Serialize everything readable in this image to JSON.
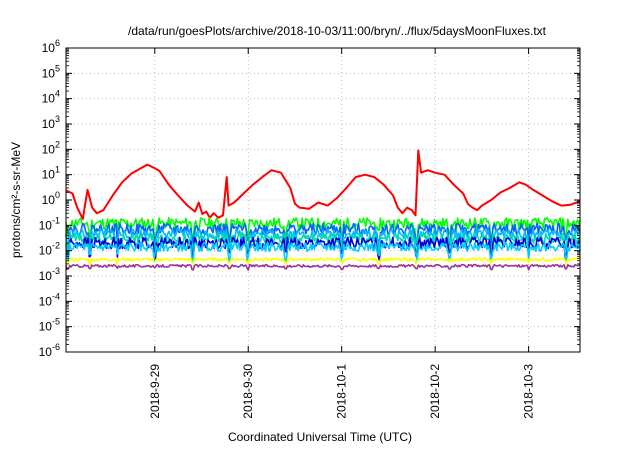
{
  "chart_data": {
    "type": "line",
    "title": "/data/run/goesPlots/archive/2018-10-03/11:00/bryn/../flux/5daysMoonFluxes.txt",
    "xlabel": "Coordinated Universal Time (UTC)",
    "ylabel": "protons/cm²-s-sr-MeV",
    "yscale": "log",
    "ylim": [
      1e-06,
      1000000.0
    ],
    "xlim": [
      0,
      5.5
    ],
    "x_ticks": [
      {
        "x": 0.95,
        "label": "2018-9-29"
      },
      {
        "x": 1.95,
        "label": "2018-9-30"
      },
      {
        "x": 2.95,
        "label": "2018-10-1"
      },
      {
        "x": 3.95,
        "label": "2018-10-2"
      },
      {
        "x": 4.95,
        "label": "2018-10-3"
      }
    ],
    "y_ticks": [
      {
        "exp": -6,
        "label": "10",
        "sup": "-6"
      },
      {
        "exp": -5,
        "label": "10",
        "sup": "-5"
      },
      {
        "exp": -4,
        "label": "10",
        "sup": "-4"
      },
      {
        "exp": -3,
        "label": "10",
        "sup": "-3"
      },
      {
        "exp": -2,
        "label": "10",
        "sup": "-2"
      },
      {
        "exp": -1,
        "label": "10",
        "sup": "-1"
      },
      {
        "exp": 0,
        "label": "10",
        "sup": "0"
      },
      {
        "exp": 1,
        "label": "10",
        "sup": "1"
      },
      {
        "exp": 2,
        "label": "10",
        "sup": "2"
      },
      {
        "exp": 3,
        "label": "10",
        "sup": "3"
      },
      {
        "exp": 4,
        "label": "10",
        "sup": "4"
      },
      {
        "exp": 5,
        "label": "10",
        "sup": "5"
      },
      {
        "exp": 6,
        "label": "10",
        "sup": "6"
      }
    ],
    "grid": true,
    "legend": "none",
    "series": [
      {
        "color": "#ff0000",
        "points": [
          [
            0,
            2.4
          ],
          [
            0.07,
            1.8
          ],
          [
            0.12,
            0.5
          ],
          [
            0.18,
            0.18
          ],
          [
            0.23,
            2.5
          ],
          [
            0.28,
            0.5
          ],
          [
            0.33,
            0.3
          ],
          [
            0.4,
            0.4
          ],
          [
            0.5,
            1.5
          ],
          [
            0.6,
            5
          ],
          [
            0.7,
            11
          ],
          [
            0.8,
            18
          ],
          [
            0.87,
            25
          ],
          [
            0.95,
            18
          ],
          [
            1.0,
            14
          ],
          [
            1.1,
            4
          ],
          [
            1.2,
            1.5
          ],
          [
            1.3,
            0.6
          ],
          [
            1.38,
            0.35
          ],
          [
            1.42,
            0.8
          ],
          [
            1.46,
            0.28
          ],
          [
            1.5,
            0.35
          ],
          [
            1.54,
            0.2
          ],
          [
            1.58,
            0.3
          ],
          [
            1.63,
            0.2
          ],
          [
            1.68,
            0.25
          ],
          [
            1.72,
            8
          ],
          [
            1.74,
            0.6
          ],
          [
            1.8,
            0.8
          ],
          [
            1.9,
            1.8
          ],
          [
            2.0,
            4
          ],
          [
            2.1,
            8
          ],
          [
            2.2,
            15
          ],
          [
            2.3,
            12
          ],
          [
            2.4,
            3
          ],
          [
            2.45,
            0.7
          ],
          [
            2.5,
            0.5
          ],
          [
            2.6,
            0.45
          ],
          [
            2.7,
            0.8
          ],
          [
            2.8,
            0.6
          ],
          [
            2.9,
            1.2
          ],
          [
            3.0,
            3
          ],
          [
            3.1,
            8
          ],
          [
            3.2,
            10
          ],
          [
            3.3,
            8
          ],
          [
            3.4,
            4
          ],
          [
            3.5,
            1.5
          ],
          [
            3.55,
            0.5
          ],
          [
            3.6,
            0.3
          ],
          [
            3.65,
            0.5
          ],
          [
            3.7,
            0.4
          ],
          [
            3.74,
            0.25
          ],
          [
            3.77,
            90
          ],
          [
            3.8,
            12
          ],
          [
            3.87,
            15
          ],
          [
            3.95,
            12
          ],
          [
            4.05,
            10
          ],
          [
            4.15,
            4
          ],
          [
            4.25,
            1.8
          ],
          [
            4.3,
            0.7
          ],
          [
            4.35,
            0.5
          ],
          [
            4.4,
            0.4
          ],
          [
            4.45,
            0.6
          ],
          [
            4.55,
            1
          ],
          [
            4.65,
            2
          ],
          [
            4.75,
            3
          ],
          [
            4.85,
            5
          ],
          [
            4.92,
            4
          ],
          [
            5.0,
            2.5
          ],
          [
            5.1,
            1.5
          ],
          [
            5.2,
            0.9
          ],
          [
            5.3,
            0.6
          ],
          [
            5.4,
            0.65
          ],
          [
            5.5,
            0.9
          ]
        ]
      },
      {
        "color": "#00ff00",
        "mean": 0.12,
        "jitter": 0.45,
        "seed": 11
      },
      {
        "color": "#0066ff",
        "mean": 0.07,
        "jitter": 0.45,
        "seed": 22
      },
      {
        "color": "#00bbff",
        "mean": 0.045,
        "jitter": 0.4,
        "seed": 33
      },
      {
        "color": "#00ddaa",
        "mean": 0.03,
        "jitter": 0.4,
        "seed": 44
      },
      {
        "color": "#0000dd",
        "mean": 0.02,
        "jitter": 0.45,
        "seed": 55
      },
      {
        "color": "#00ccff",
        "mean": 0.014,
        "jitter": 0.35,
        "seed": 66
      },
      {
        "color": "#ffff00",
        "mean": 0.0045,
        "jitter": 0.12,
        "seed": 77
      },
      {
        "color": "#993399",
        "mean": 0.0025,
        "jitter": 0.1,
        "seed": 88
      }
    ]
  }
}
